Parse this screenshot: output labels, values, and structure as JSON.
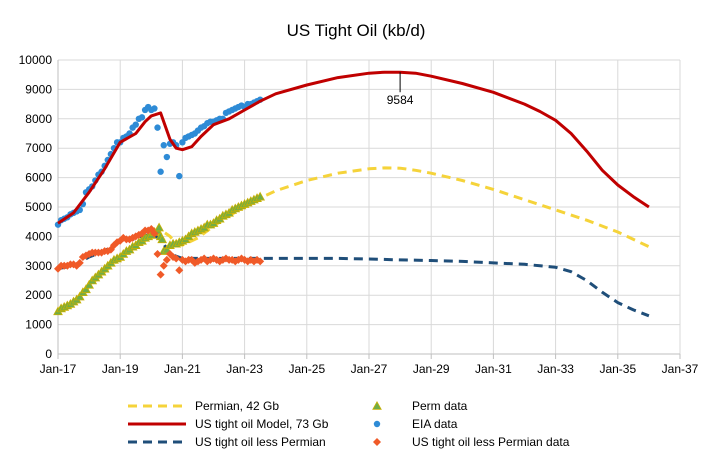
{
  "chart_data": {
    "type": "line",
    "title": "US Tight Oil (kb/d)",
    "xlabel": "",
    "ylabel": "",
    "grid": true,
    "legend_position": "bottom",
    "x_ticks": [
      "Jan-17",
      "Jan-19",
      "Jan-21",
      "Jan-23",
      "Jan-25",
      "Jan-27",
      "Jan-29",
      "Jan-31",
      "Jan-33",
      "Jan-35",
      "Jan-37"
    ],
    "xlim": [
      2017,
      2037
    ],
    "ylim": [
      0,
      10000
    ],
    "y_ticks": [
      0,
      1000,
      2000,
      3000,
      4000,
      5000,
      6000,
      7000,
      8000,
      9000,
      10000
    ],
    "annotations": [
      {
        "text": "9584",
        "x": 2028.0,
        "y": 9584
      }
    ],
    "series": [
      {
        "name": "Permian, 42 Gb",
        "kind": "dashed-line",
        "color": "#f5d33a",
        "x": [
          2017.0,
          2017.5,
          2018.0,
          2018.5,
          2019.0,
          2019.5,
          2020.0,
          2020.4,
          2020.6,
          2020.8,
          2021.0,
          2021.5,
          2022.0,
          2022.5,
          2023.0,
          2023.5,
          2024.0,
          2025.0,
          2026.0,
          2027.0,
          2027.5,
          2028.0,
          2028.5,
          2029.0,
          2030.0,
          2031.0,
          2032.0,
          2033.0,
          2034.0,
          2035.0,
          2036.0
        ],
        "values": [
          1450,
          1750,
          2300,
          2800,
          3250,
          3650,
          4000,
          4150,
          4000,
          3750,
          3700,
          3950,
          4350,
          4700,
          5000,
          5300,
          5550,
          5900,
          6150,
          6300,
          6330,
          6320,
          6250,
          6150,
          5900,
          5600,
          5250,
          4900,
          4550,
          4150,
          3650
        ]
      },
      {
        "name": "US tight oil Model, 73 Gb",
        "kind": "line",
        "color": "#c00000",
        "x": [
          2017.0,
          2017.5,
          2018.0,
          2018.5,
          2019.0,
          2019.5,
          2019.8,
          2020.0,
          2020.3,
          2020.6,
          2020.8,
          2021.0,
          2021.3,
          2021.6,
          2022.0,
          2022.5,
          2023.0,
          2023.5,
          2024.0,
          2025.0,
          2026.0,
          2027.0,
          2027.5,
          2028.0,
          2028.5,
          2029.0,
          2030.0,
          2031.0,
          2032.0,
          2032.5,
          2033.0,
          2033.5,
          2034.0,
          2034.5,
          2035.0,
          2035.5,
          2036.0
        ],
        "values": [
          4450,
          4800,
          5500,
          6300,
          7200,
          7500,
          7900,
          8100,
          8200,
          7300,
          7000,
          6950,
          7050,
          7400,
          7800,
          8000,
          8300,
          8600,
          8850,
          9150,
          9400,
          9550,
          9584,
          9584,
          9550,
          9450,
          9200,
          8900,
          8500,
          8250,
          7950,
          7500,
          6900,
          6250,
          5750,
          5350,
          5000
        ]
      },
      {
        "name": "US tight oil less Permian",
        "kind": "dashed-line",
        "color": "#1f4e79",
        "x": [
          2017.0,
          2017.5,
          2018.0,
          2018.5,
          2019.0,
          2019.5,
          2020.0,
          2020.3,
          2020.6,
          2021.0,
          2021.5,
          2022.0,
          2023.0,
          2024.0,
          2025.0,
          2026.0,
          2027.0,
          2028.0,
          2029.0,
          2030.0,
          2031.0,
          2032.0,
          2032.5,
          2033.0,
          2033.5,
          2034.0,
          2034.5,
          2035.0,
          2035.5,
          2036.0
        ],
        "values": [
          2900,
          3000,
          3300,
          3500,
          3900,
          3900,
          4100,
          3900,
          3400,
          3250,
          3250,
          3250,
          3250,
          3250,
          3250,
          3250,
          3230,
          3200,
          3180,
          3150,
          3100,
          3050,
          3000,
          2950,
          2800,
          2500,
          2100,
          1750,
          1500,
          1300
        ]
      },
      {
        "name": "Perm data",
        "kind": "triangle",
        "color": "#70ad47",
        "outline": "#c9b000",
        "x": [
          2017.0,
          2017.1,
          2017.2,
          2017.3,
          2017.4,
          2017.5,
          2017.6,
          2017.7,
          2017.8,
          2017.9,
          2018.0,
          2018.1,
          2018.2,
          2018.3,
          2018.4,
          2018.5,
          2018.6,
          2018.7,
          2018.8,
          2018.9,
          2019.0,
          2019.1,
          2019.2,
          2019.3,
          2019.4,
          2019.5,
          2019.6,
          2019.7,
          2019.8,
          2019.9,
          2020.0,
          2020.1,
          2020.2,
          2020.25,
          2020.3,
          2020.35,
          2020.4,
          2020.5,
          2020.6,
          2020.7,
          2020.8,
          2020.9,
          2021.0,
          2021.1,
          2021.2,
          2021.3,
          2021.4,
          2021.5,
          2021.6,
          2021.7,
          2021.8,
          2021.9,
          2022.0,
          2022.1,
          2022.2,
          2022.3,
          2022.4,
          2022.5,
          2022.6,
          2022.7,
          2022.8,
          2022.9,
          2023.0,
          2023.1,
          2023.2,
          2023.3,
          2023.4,
          2023.5
        ],
        "values": [
          1450,
          1550,
          1600,
          1650,
          1700,
          1780,
          1850,
          1950,
          2100,
          2200,
          2350,
          2500,
          2600,
          2700,
          2800,
          2900,
          3000,
          3100,
          3200,
          3250,
          3300,
          3400,
          3500,
          3550,
          3650,
          3700,
          3800,
          3850,
          3950,
          4000,
          4050,
          4150,
          4200,
          4300,
          4000,
          3900,
          3500,
          3550,
          3700,
          3750,
          3750,
          3800,
          3850,
          3900,
          4000,
          4100,
          4150,
          4200,
          4250,
          4300,
          4400,
          4400,
          4450,
          4550,
          4600,
          4700,
          4750,
          4800,
          4900,
          4950,
          5000,
          5050,
          5100,
          5150,
          5200,
          5250,
          5300,
          5350
        ]
      },
      {
        "name": "EIA data",
        "kind": "circle",
        "color": "#2e8bd6",
        "x": [
          2017.0,
          2017.1,
          2017.2,
          2017.3,
          2017.4,
          2017.5,
          2017.6,
          2017.7,
          2017.8,
          2017.9,
          2018.0,
          2018.1,
          2018.2,
          2018.3,
          2018.4,
          2018.5,
          2018.6,
          2018.7,
          2018.8,
          2018.9,
          2019.0,
          2019.1,
          2019.2,
          2019.3,
          2019.4,
          2019.5,
          2019.6,
          2019.7,
          2019.8,
          2019.9,
          2020.0,
          2020.1,
          2020.2,
          2020.3,
          2020.4,
          2020.5,
          2020.6,
          2020.7,
          2020.8,
          2020.9,
          2021.0,
          2021.1,
          2021.2,
          2021.3,
          2021.4,
          2021.5,
          2021.6,
          2021.7,
          2021.8,
          2021.9,
          2022.0,
          2022.1,
          2022.2,
          2022.3,
          2022.4,
          2022.5,
          2022.6,
          2022.7,
          2022.8,
          2022.9,
          2023.0,
          2023.1,
          2023.2,
          2023.3,
          2023.4,
          2023.5
        ],
        "values": [
          4400,
          4550,
          4600,
          4650,
          4750,
          4800,
          4850,
          4900,
          5100,
          5500,
          5600,
          5700,
          5900,
          6100,
          6200,
          6400,
          6600,
          6800,
          7000,
          7200,
          7200,
          7350,
          7400,
          7500,
          7700,
          7800,
          8000,
          8050,
          8300,
          8400,
          8300,
          8350,
          7700,
          6200,
          7100,
          6700,
          7150,
          7200,
          7100,
          6050,
          7200,
          7350,
          7400,
          7450,
          7500,
          7600,
          7700,
          7750,
          7850,
          7900,
          7900,
          7950,
          8000,
          8000,
          8200,
          8250,
          8300,
          8350,
          8400,
          8450,
          8400,
          8500,
          8500,
          8550,
          8600,
          8650
        ]
      },
      {
        "name": "US tight oil less Permian data",
        "kind": "diamond",
        "color": "#f05a28",
        "x": [
          2017.0,
          2017.1,
          2017.2,
          2017.3,
          2017.4,
          2017.5,
          2017.6,
          2017.7,
          2017.8,
          2017.9,
          2018.0,
          2018.1,
          2018.2,
          2018.3,
          2018.4,
          2018.5,
          2018.6,
          2018.7,
          2018.8,
          2018.9,
          2019.0,
          2019.1,
          2019.2,
          2019.3,
          2019.4,
          2019.5,
          2019.6,
          2019.7,
          2019.8,
          2019.9,
          2020.0,
          2020.1,
          2020.2,
          2020.3,
          2020.4,
          2020.5,
          2020.6,
          2020.7,
          2020.8,
          2020.9,
          2021.0,
          2021.1,
          2021.2,
          2021.3,
          2021.4,
          2021.5,
          2021.6,
          2021.7,
          2021.8,
          2021.9,
          2022.0,
          2022.1,
          2022.2,
          2022.3,
          2022.4,
          2022.5,
          2022.6,
          2022.7,
          2022.8,
          2022.9,
          2023.0,
          2023.1,
          2023.2,
          2023.3,
          2023.4,
          2023.5
        ],
        "values": [
          2900,
          3000,
          3000,
          3000,
          3050,
          3050,
          3000,
          3100,
          3300,
          3350,
          3400,
          3450,
          3450,
          3450,
          3450,
          3500,
          3500,
          3550,
          3700,
          3800,
          3850,
          3950,
          3900,
          3900,
          3950,
          4000,
          4050,
          4100,
          4200,
          4200,
          4250,
          4100,
          3400,
          2700,
          3000,
          3200,
          3400,
          3300,
          3250,
          2850,
          3200,
          3150,
          3200,
          3200,
          3100,
          3150,
          3200,
          3250,
          3150,
          3200,
          3250,
          3200,
          3150,
          3200,
          3250,
          3200,
          3200,
          3150,
          3200,
          3250,
          3200,
          3150,
          3200,
          3150,
          3200,
          3150
        ]
      }
    ]
  }
}
